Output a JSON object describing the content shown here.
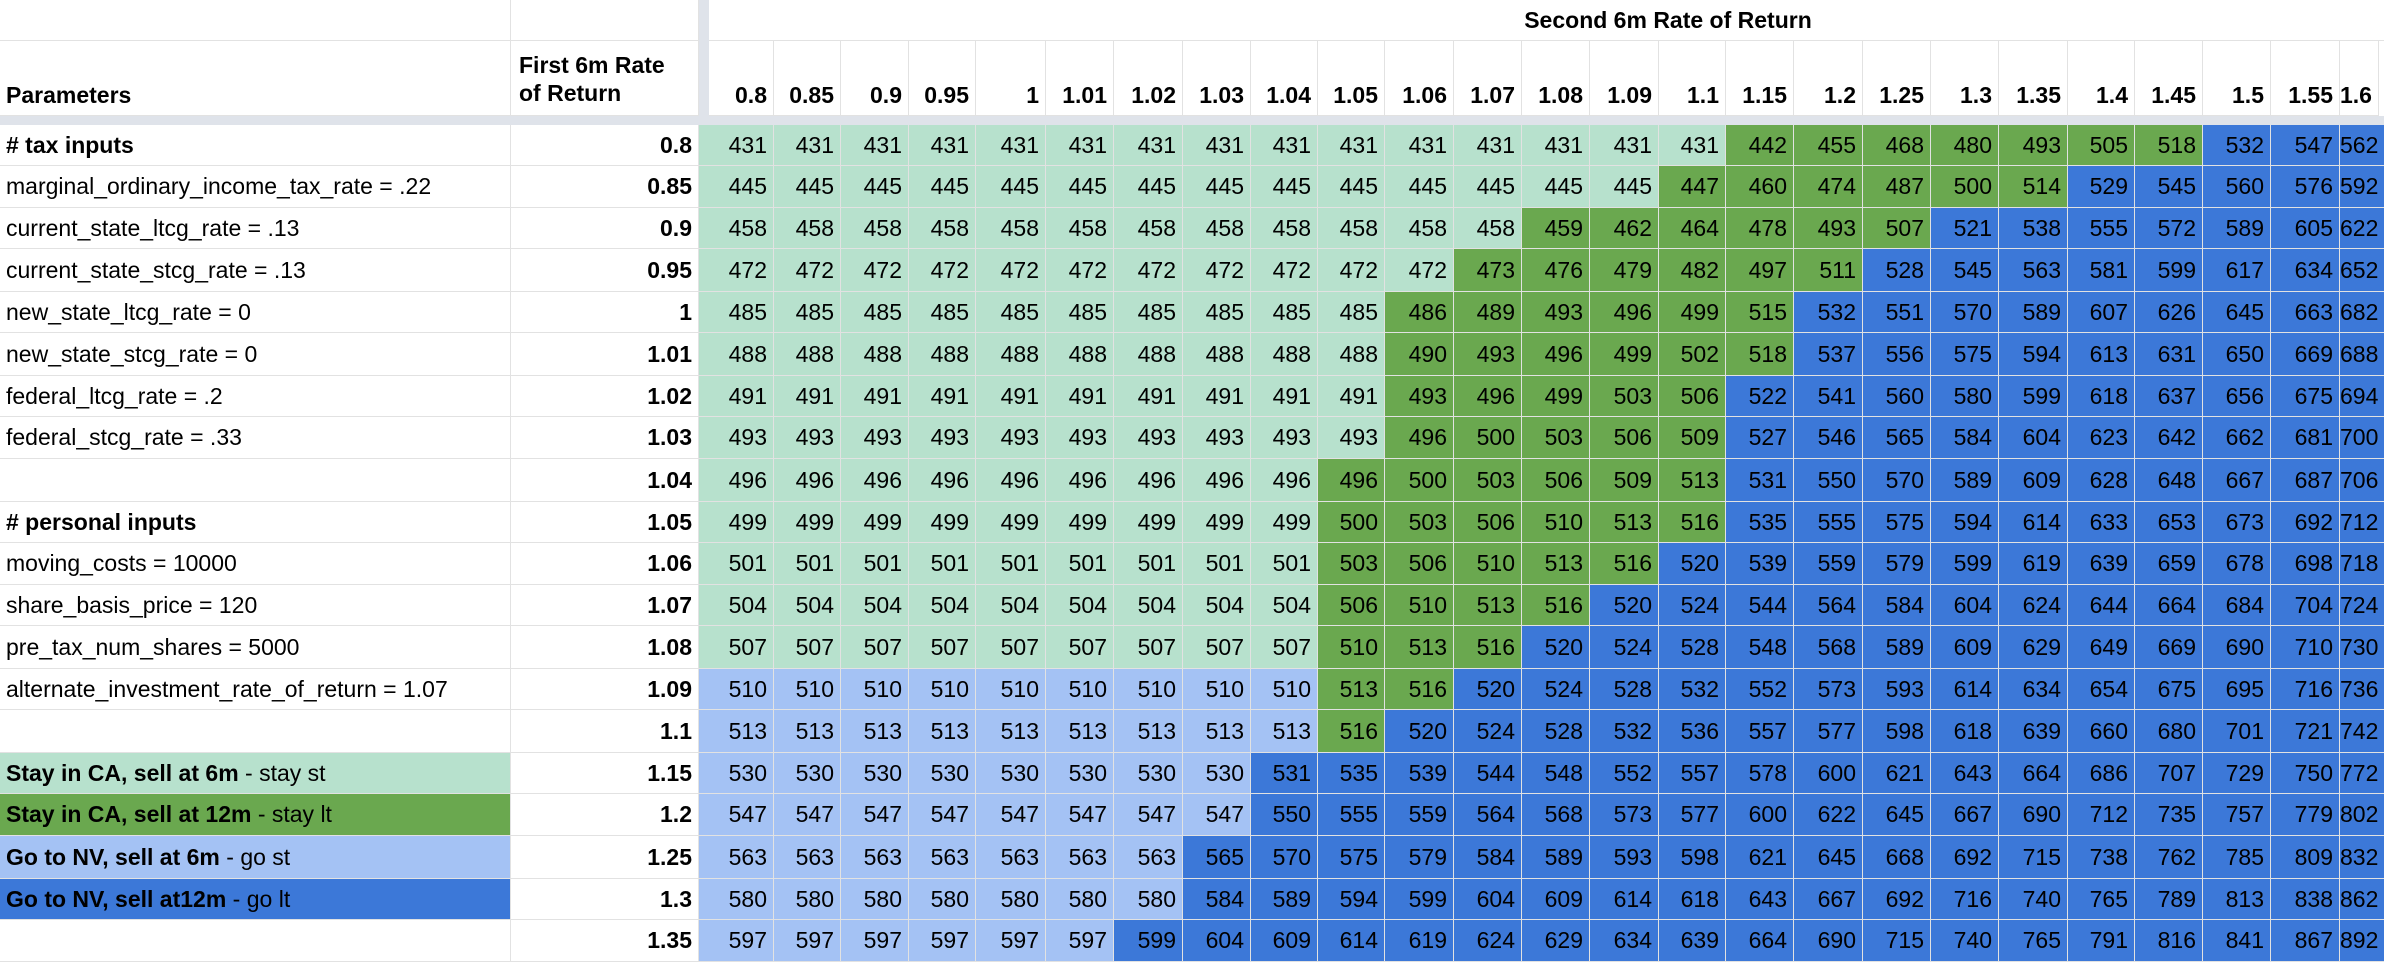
{
  "header": {
    "parameters_label": "Parameters",
    "first_rate_label_line1": "First 6m Rate",
    "first_rate_label_line2": "of Return",
    "second_rate_label": "Second 6m Rate of Return"
  },
  "columns": [
    "0.8",
    "0.85",
    "0.9",
    "0.95",
    "1",
    "1.01",
    "1.02",
    "1.03",
    "1.04",
    "1.05",
    "1.06",
    "1.07",
    "1.08",
    "1.09",
    "1.1",
    "1.15",
    "1.2",
    "1.25",
    "1.3",
    "1.35",
    "1.4",
    "1.45",
    "1.5",
    "1.55",
    "1.6"
  ],
  "row_labels": [
    "0.8",
    "0.85",
    "0.9",
    "0.95",
    "1",
    "1.01",
    "1.02",
    "1.03",
    "1.04",
    "1.05",
    "1.06",
    "1.07",
    "1.08",
    "1.09",
    "1.1",
    "1.15",
    "1.2",
    "1.25",
    "1.3",
    "1.35"
  ],
  "parameters": [
    {
      "text": "# tax inputs",
      "bold": true
    },
    {
      "text": "marginal_ordinary_income_tax_rate = .22"
    },
    {
      "text": "current_state_ltcg_rate = .13"
    },
    {
      "text": "current_state_stcg_rate = .13"
    },
    {
      "text": "new_state_ltcg_rate = 0"
    },
    {
      "text": "new_state_stcg_rate = 0"
    },
    {
      "text": "federal_ltcg_rate = .2"
    },
    {
      "text": "federal_stcg_rate = .33"
    },
    {
      "text": ""
    },
    {
      "text": "# personal inputs",
      "bold": true
    },
    {
      "text": "moving_costs = 10000"
    },
    {
      "text": "share_basis_price = 120"
    },
    {
      "text": "pre_tax_num_shares = 5000"
    },
    {
      "text": "alternate_investment_rate_of_return = 1.07"
    },
    {
      "text": ""
    },
    {
      "legend": true,
      "bold_text": "Stay in CA, sell at 6m",
      "suffix": " - stay st",
      "cat": "stay_st"
    },
    {
      "legend": true,
      "bold_text": "Stay in CA, sell at 12m",
      "suffix": " - stay lt",
      "cat": "stay_lt"
    },
    {
      "legend": true,
      "bold_text": "Go to NV, sell at 6m",
      "suffix": " - go st",
      "cat": "go_st"
    },
    {
      "legend": true,
      "bold_text": "Go to NV, sell at12m",
      "suffix": " - go lt",
      "cat": "go_lt"
    },
    {
      "text": ""
    }
  ],
  "category_colors": {
    "stay_st": "#b7e1cd",
    "stay_lt": "#6aa84f",
    "go_st": "#a4c2f4",
    "go_lt": "#3c78d8"
  },
  "grid": [
    [
      "431",
      "431",
      "431",
      "431",
      "431",
      "431",
      "431",
      "431",
      "431",
      "431",
      "431",
      "431",
      "431",
      "431",
      "431",
      "442",
      "455",
      "468",
      "480",
      "493",
      "505",
      "518",
      "532",
      "547",
      "562"
    ],
    [
      "445",
      "445",
      "445",
      "445",
      "445",
      "445",
      "445",
      "445",
      "445",
      "445",
      "445",
      "445",
      "445",
      "445",
      "447",
      "460",
      "474",
      "487",
      "500",
      "514",
      "529",
      "545",
      "560",
      "576",
      "592"
    ],
    [
      "458",
      "458",
      "458",
      "458",
      "458",
      "458",
      "458",
      "458",
      "458",
      "458",
      "458",
      "458",
      "459",
      "462",
      "464",
      "478",
      "493",
      "507",
      "521",
      "538",
      "555",
      "572",
      "589",
      "605",
      "622"
    ],
    [
      "472",
      "472",
      "472",
      "472",
      "472",
      "472",
      "472",
      "472",
      "472",
      "472",
      "472",
      "473",
      "476",
      "479",
      "482",
      "497",
      "511",
      "528",
      "545",
      "563",
      "581",
      "599",
      "617",
      "634",
      "652"
    ],
    [
      "485",
      "485",
      "485",
      "485",
      "485",
      "485",
      "485",
      "485",
      "485",
      "485",
      "486",
      "489",
      "493",
      "496",
      "499",
      "515",
      "532",
      "551",
      "570",
      "589",
      "607",
      "626",
      "645",
      "663",
      "682"
    ],
    [
      "488",
      "488",
      "488",
      "488",
      "488",
      "488",
      "488",
      "488",
      "488",
      "488",
      "490",
      "493",
      "496",
      "499",
      "502",
      "518",
      "537",
      "556",
      "575",
      "594",
      "613",
      "631",
      "650",
      "669",
      "688"
    ],
    [
      "491",
      "491",
      "491",
      "491",
      "491",
      "491",
      "491",
      "491",
      "491",
      "491",
      "493",
      "496",
      "499",
      "503",
      "506",
      "522",
      "541",
      "560",
      "580",
      "599",
      "618",
      "637",
      "656",
      "675",
      "694"
    ],
    [
      "493",
      "493",
      "493",
      "493",
      "493",
      "493",
      "493",
      "493",
      "493",
      "493",
      "496",
      "500",
      "503",
      "506",
      "509",
      "527",
      "546",
      "565",
      "584",
      "604",
      "623",
      "642",
      "662",
      "681",
      "700"
    ],
    [
      "496",
      "496",
      "496",
      "496",
      "496",
      "496",
      "496",
      "496",
      "496",
      "496",
      "500",
      "503",
      "506",
      "509",
      "513",
      "531",
      "550",
      "570",
      "589",
      "609",
      "628",
      "648",
      "667",
      "687",
      "706"
    ],
    [
      "499",
      "499",
      "499",
      "499",
      "499",
      "499",
      "499",
      "499",
      "499",
      "500",
      "503",
      "506",
      "510",
      "513",
      "516",
      "535",
      "555",
      "575",
      "594",
      "614",
      "633",
      "653",
      "673",
      "692",
      "712"
    ],
    [
      "501",
      "501",
      "501",
      "501",
      "501",
      "501",
      "501",
      "501",
      "501",
      "503",
      "506",
      "510",
      "513",
      "516",
      "520",
      "539",
      "559",
      "579",
      "599",
      "619",
      "639",
      "659",
      "678",
      "698",
      "718"
    ],
    [
      "504",
      "504",
      "504",
      "504",
      "504",
      "504",
      "504",
      "504",
      "504",
      "506",
      "510",
      "513",
      "516",
      "520",
      "524",
      "544",
      "564",
      "584",
      "604",
      "624",
      "644",
      "664",
      "684",
      "704",
      "724"
    ],
    [
      "507",
      "507",
      "507",
      "507",
      "507",
      "507",
      "507",
      "507",
      "507",
      "510",
      "513",
      "516",
      "520",
      "524",
      "528",
      "548",
      "568",
      "589",
      "609",
      "629",
      "649",
      "669",
      "690",
      "710",
      "730"
    ],
    [
      "510",
      "510",
      "510",
      "510",
      "510",
      "510",
      "510",
      "510",
      "510",
      "513",
      "516",
      "520",
      "524",
      "528",
      "532",
      "552",
      "573",
      "593",
      "614",
      "634",
      "654",
      "675",
      "695",
      "716",
      "736"
    ],
    [
      "513",
      "513",
      "513",
      "513",
      "513",
      "513",
      "513",
      "513",
      "513",
      "516",
      "520",
      "524",
      "528",
      "532",
      "536",
      "557",
      "577",
      "598",
      "618",
      "639",
      "660",
      "680",
      "701",
      "721",
      "742"
    ],
    [
      "530",
      "530",
      "530",
      "530",
      "530",
      "530",
      "530",
      "530",
      "531",
      "535",
      "539",
      "544",
      "548",
      "552",
      "557",
      "578",
      "600",
      "621",
      "643",
      "664",
      "686",
      "707",
      "729",
      "750",
      "772"
    ],
    [
      "547",
      "547",
      "547",
      "547",
      "547",
      "547",
      "547",
      "547",
      "550",
      "555",
      "559",
      "564",
      "568",
      "573",
      "577",
      "600",
      "622",
      "645",
      "667",
      "690",
      "712",
      "735",
      "757",
      "779",
      "802"
    ],
    [
      "563",
      "563",
      "563",
      "563",
      "563",
      "563",
      "563",
      "565",
      "570",
      "575",
      "579",
      "584",
      "589",
      "593",
      "598",
      "621",
      "645",
      "668",
      "692",
      "715",
      "738",
      "762",
      "785",
      "809",
      "832"
    ],
    [
      "580",
      "580",
      "580",
      "580",
      "580",
      "580",
      "580",
      "584",
      "589",
      "594",
      "599",
      "604",
      "609",
      "614",
      "618",
      "643",
      "667",
      "692",
      "716",
      "740",
      "765",
      "789",
      "813",
      "838",
      "862"
    ],
    [
      "597",
      "597",
      "597",
      "597",
      "597",
      "597",
      "599",
      "604",
      "609",
      "614",
      "619",
      "624",
      "629",
      "634",
      "639",
      "664",
      "690",
      "715",
      "740",
      "765",
      "791",
      "816",
      "841",
      "867",
      "892"
    ]
  ],
  "categories": [
    [
      "stay_st",
      "stay_st",
      "stay_st",
      "stay_st",
      "stay_st",
      "stay_st",
      "stay_st",
      "stay_st",
      "stay_st",
      "stay_st",
      "stay_st",
      "stay_st",
      "stay_st",
      "stay_st",
      "stay_st",
      "stay_lt",
      "stay_lt",
      "stay_lt",
      "stay_lt",
      "stay_lt",
      "stay_lt",
      "stay_lt",
      "go_lt",
      "go_lt",
      "go_lt"
    ],
    [
      "stay_st",
      "stay_st",
      "stay_st",
      "stay_st",
      "stay_st",
      "stay_st",
      "stay_st",
      "stay_st",
      "stay_st",
      "stay_st",
      "stay_st",
      "stay_st",
      "stay_st",
      "stay_st",
      "stay_lt",
      "stay_lt",
      "stay_lt",
      "stay_lt",
      "stay_lt",
      "stay_lt",
      "go_lt",
      "go_lt",
      "go_lt",
      "go_lt",
      "go_lt"
    ],
    [
      "stay_st",
      "stay_st",
      "stay_st",
      "stay_st",
      "stay_st",
      "stay_st",
      "stay_st",
      "stay_st",
      "stay_st",
      "stay_st",
      "stay_st",
      "stay_st",
      "stay_lt",
      "stay_lt",
      "stay_lt",
      "stay_lt",
      "stay_lt",
      "stay_lt",
      "go_lt",
      "go_lt",
      "go_lt",
      "go_lt",
      "go_lt",
      "go_lt",
      "go_lt"
    ],
    [
      "stay_st",
      "stay_st",
      "stay_st",
      "stay_st",
      "stay_st",
      "stay_st",
      "stay_st",
      "stay_st",
      "stay_st",
      "stay_st",
      "stay_st",
      "stay_lt",
      "stay_lt",
      "stay_lt",
      "stay_lt",
      "stay_lt",
      "stay_lt",
      "go_lt",
      "go_lt",
      "go_lt",
      "go_lt",
      "go_lt",
      "go_lt",
      "go_lt",
      "go_lt"
    ],
    [
      "stay_st",
      "stay_st",
      "stay_st",
      "stay_st",
      "stay_st",
      "stay_st",
      "stay_st",
      "stay_st",
      "stay_st",
      "stay_st",
      "stay_lt",
      "stay_lt",
      "stay_lt",
      "stay_lt",
      "stay_lt",
      "stay_lt",
      "go_lt",
      "go_lt",
      "go_lt",
      "go_lt",
      "go_lt",
      "go_lt",
      "go_lt",
      "go_lt",
      "go_lt"
    ],
    [
      "stay_st",
      "stay_st",
      "stay_st",
      "stay_st",
      "stay_st",
      "stay_st",
      "stay_st",
      "stay_st",
      "stay_st",
      "stay_st",
      "stay_lt",
      "stay_lt",
      "stay_lt",
      "stay_lt",
      "stay_lt",
      "stay_lt",
      "go_lt",
      "go_lt",
      "go_lt",
      "go_lt",
      "go_lt",
      "go_lt",
      "go_lt",
      "go_lt",
      "go_lt"
    ],
    [
      "stay_st",
      "stay_st",
      "stay_st",
      "stay_st",
      "stay_st",
      "stay_st",
      "stay_st",
      "stay_st",
      "stay_st",
      "stay_st",
      "stay_lt",
      "stay_lt",
      "stay_lt",
      "stay_lt",
      "stay_lt",
      "go_lt",
      "go_lt",
      "go_lt",
      "go_lt",
      "go_lt",
      "go_lt",
      "go_lt",
      "go_lt",
      "go_lt",
      "go_lt"
    ],
    [
      "stay_st",
      "stay_st",
      "stay_st",
      "stay_st",
      "stay_st",
      "stay_st",
      "stay_st",
      "stay_st",
      "stay_st",
      "stay_st",
      "stay_lt",
      "stay_lt",
      "stay_lt",
      "stay_lt",
      "stay_lt",
      "go_lt",
      "go_lt",
      "go_lt",
      "go_lt",
      "go_lt",
      "go_lt",
      "go_lt",
      "go_lt",
      "go_lt",
      "go_lt"
    ],
    [
      "stay_st",
      "stay_st",
      "stay_st",
      "stay_st",
      "stay_st",
      "stay_st",
      "stay_st",
      "stay_st",
      "stay_st",
      "stay_lt",
      "stay_lt",
      "stay_lt",
      "stay_lt",
      "stay_lt",
      "stay_lt",
      "go_lt",
      "go_lt",
      "go_lt",
      "go_lt",
      "go_lt",
      "go_lt",
      "go_lt",
      "go_lt",
      "go_lt",
      "go_lt"
    ],
    [
      "stay_st",
      "stay_st",
      "stay_st",
      "stay_st",
      "stay_st",
      "stay_st",
      "stay_st",
      "stay_st",
      "stay_st",
      "stay_lt",
      "stay_lt",
      "stay_lt",
      "stay_lt",
      "stay_lt",
      "stay_lt",
      "go_lt",
      "go_lt",
      "go_lt",
      "go_lt",
      "go_lt",
      "go_lt",
      "go_lt",
      "go_lt",
      "go_lt",
      "go_lt"
    ],
    [
      "stay_st",
      "stay_st",
      "stay_st",
      "stay_st",
      "stay_st",
      "stay_st",
      "stay_st",
      "stay_st",
      "stay_st",
      "stay_lt",
      "stay_lt",
      "stay_lt",
      "stay_lt",
      "stay_lt",
      "go_lt",
      "go_lt",
      "go_lt",
      "go_lt",
      "go_lt",
      "go_lt",
      "go_lt",
      "go_lt",
      "go_lt",
      "go_lt",
      "go_lt"
    ],
    [
      "stay_st",
      "stay_st",
      "stay_st",
      "stay_st",
      "stay_st",
      "stay_st",
      "stay_st",
      "stay_st",
      "stay_st",
      "stay_lt",
      "stay_lt",
      "stay_lt",
      "stay_lt",
      "go_lt",
      "go_lt",
      "go_lt",
      "go_lt",
      "go_lt",
      "go_lt",
      "go_lt",
      "go_lt",
      "go_lt",
      "go_lt",
      "go_lt",
      "go_lt"
    ],
    [
      "stay_st",
      "stay_st",
      "stay_st",
      "stay_st",
      "stay_st",
      "stay_st",
      "stay_st",
      "stay_st",
      "stay_st",
      "stay_lt",
      "stay_lt",
      "stay_lt",
      "go_lt",
      "go_lt",
      "go_lt",
      "go_lt",
      "go_lt",
      "go_lt",
      "go_lt",
      "go_lt",
      "go_lt",
      "go_lt",
      "go_lt",
      "go_lt",
      "go_lt"
    ],
    [
      "go_st",
      "go_st",
      "go_st",
      "go_st",
      "go_st",
      "go_st",
      "go_st",
      "go_st",
      "go_st",
      "stay_lt",
      "stay_lt",
      "go_lt",
      "go_lt",
      "go_lt",
      "go_lt",
      "go_lt",
      "go_lt",
      "go_lt",
      "go_lt",
      "go_lt",
      "go_lt",
      "go_lt",
      "go_lt",
      "go_lt",
      "go_lt"
    ],
    [
      "go_st",
      "go_st",
      "go_st",
      "go_st",
      "go_st",
      "go_st",
      "go_st",
      "go_st",
      "go_st",
      "stay_lt",
      "go_lt",
      "go_lt",
      "go_lt",
      "go_lt",
      "go_lt",
      "go_lt",
      "go_lt",
      "go_lt",
      "go_lt",
      "go_lt",
      "go_lt",
      "go_lt",
      "go_lt",
      "go_lt",
      "go_lt"
    ],
    [
      "go_st",
      "go_st",
      "go_st",
      "go_st",
      "go_st",
      "go_st",
      "go_st",
      "go_st",
      "go_lt",
      "go_lt",
      "go_lt",
      "go_lt",
      "go_lt",
      "go_lt",
      "go_lt",
      "go_lt",
      "go_lt",
      "go_lt",
      "go_lt",
      "go_lt",
      "go_lt",
      "go_lt",
      "go_lt",
      "go_lt",
      "go_lt"
    ],
    [
      "go_st",
      "go_st",
      "go_st",
      "go_st",
      "go_st",
      "go_st",
      "go_st",
      "go_st",
      "go_lt",
      "go_lt",
      "go_lt",
      "go_lt",
      "go_lt",
      "go_lt",
      "go_lt",
      "go_lt",
      "go_lt",
      "go_lt",
      "go_lt",
      "go_lt",
      "go_lt",
      "go_lt",
      "go_lt",
      "go_lt",
      "go_lt"
    ],
    [
      "go_st",
      "go_st",
      "go_st",
      "go_st",
      "go_st",
      "go_st",
      "go_st",
      "go_lt",
      "go_lt",
      "go_lt",
      "go_lt",
      "go_lt",
      "go_lt",
      "go_lt",
      "go_lt",
      "go_lt",
      "go_lt",
      "go_lt",
      "go_lt",
      "go_lt",
      "go_lt",
      "go_lt",
      "go_lt",
      "go_lt",
      "go_lt"
    ],
    [
      "go_st",
      "go_st",
      "go_st",
      "go_st",
      "go_st",
      "go_st",
      "go_st",
      "go_lt",
      "go_lt",
      "go_lt",
      "go_lt",
      "go_lt",
      "go_lt",
      "go_lt",
      "go_lt",
      "go_lt",
      "go_lt",
      "go_lt",
      "go_lt",
      "go_lt",
      "go_lt",
      "go_lt",
      "go_lt",
      "go_lt",
      "go_lt"
    ],
    [
      "go_st",
      "go_st",
      "go_st",
      "go_st",
      "go_st",
      "go_st",
      "go_lt",
      "go_lt",
      "go_lt",
      "go_lt",
      "go_lt",
      "go_lt",
      "go_lt",
      "go_lt",
      "go_lt",
      "go_lt",
      "go_lt",
      "go_lt",
      "go_lt",
      "go_lt",
      "go_lt",
      "go_lt",
      "go_lt",
      "go_lt",
      "go_lt"
    ]
  ]
}
